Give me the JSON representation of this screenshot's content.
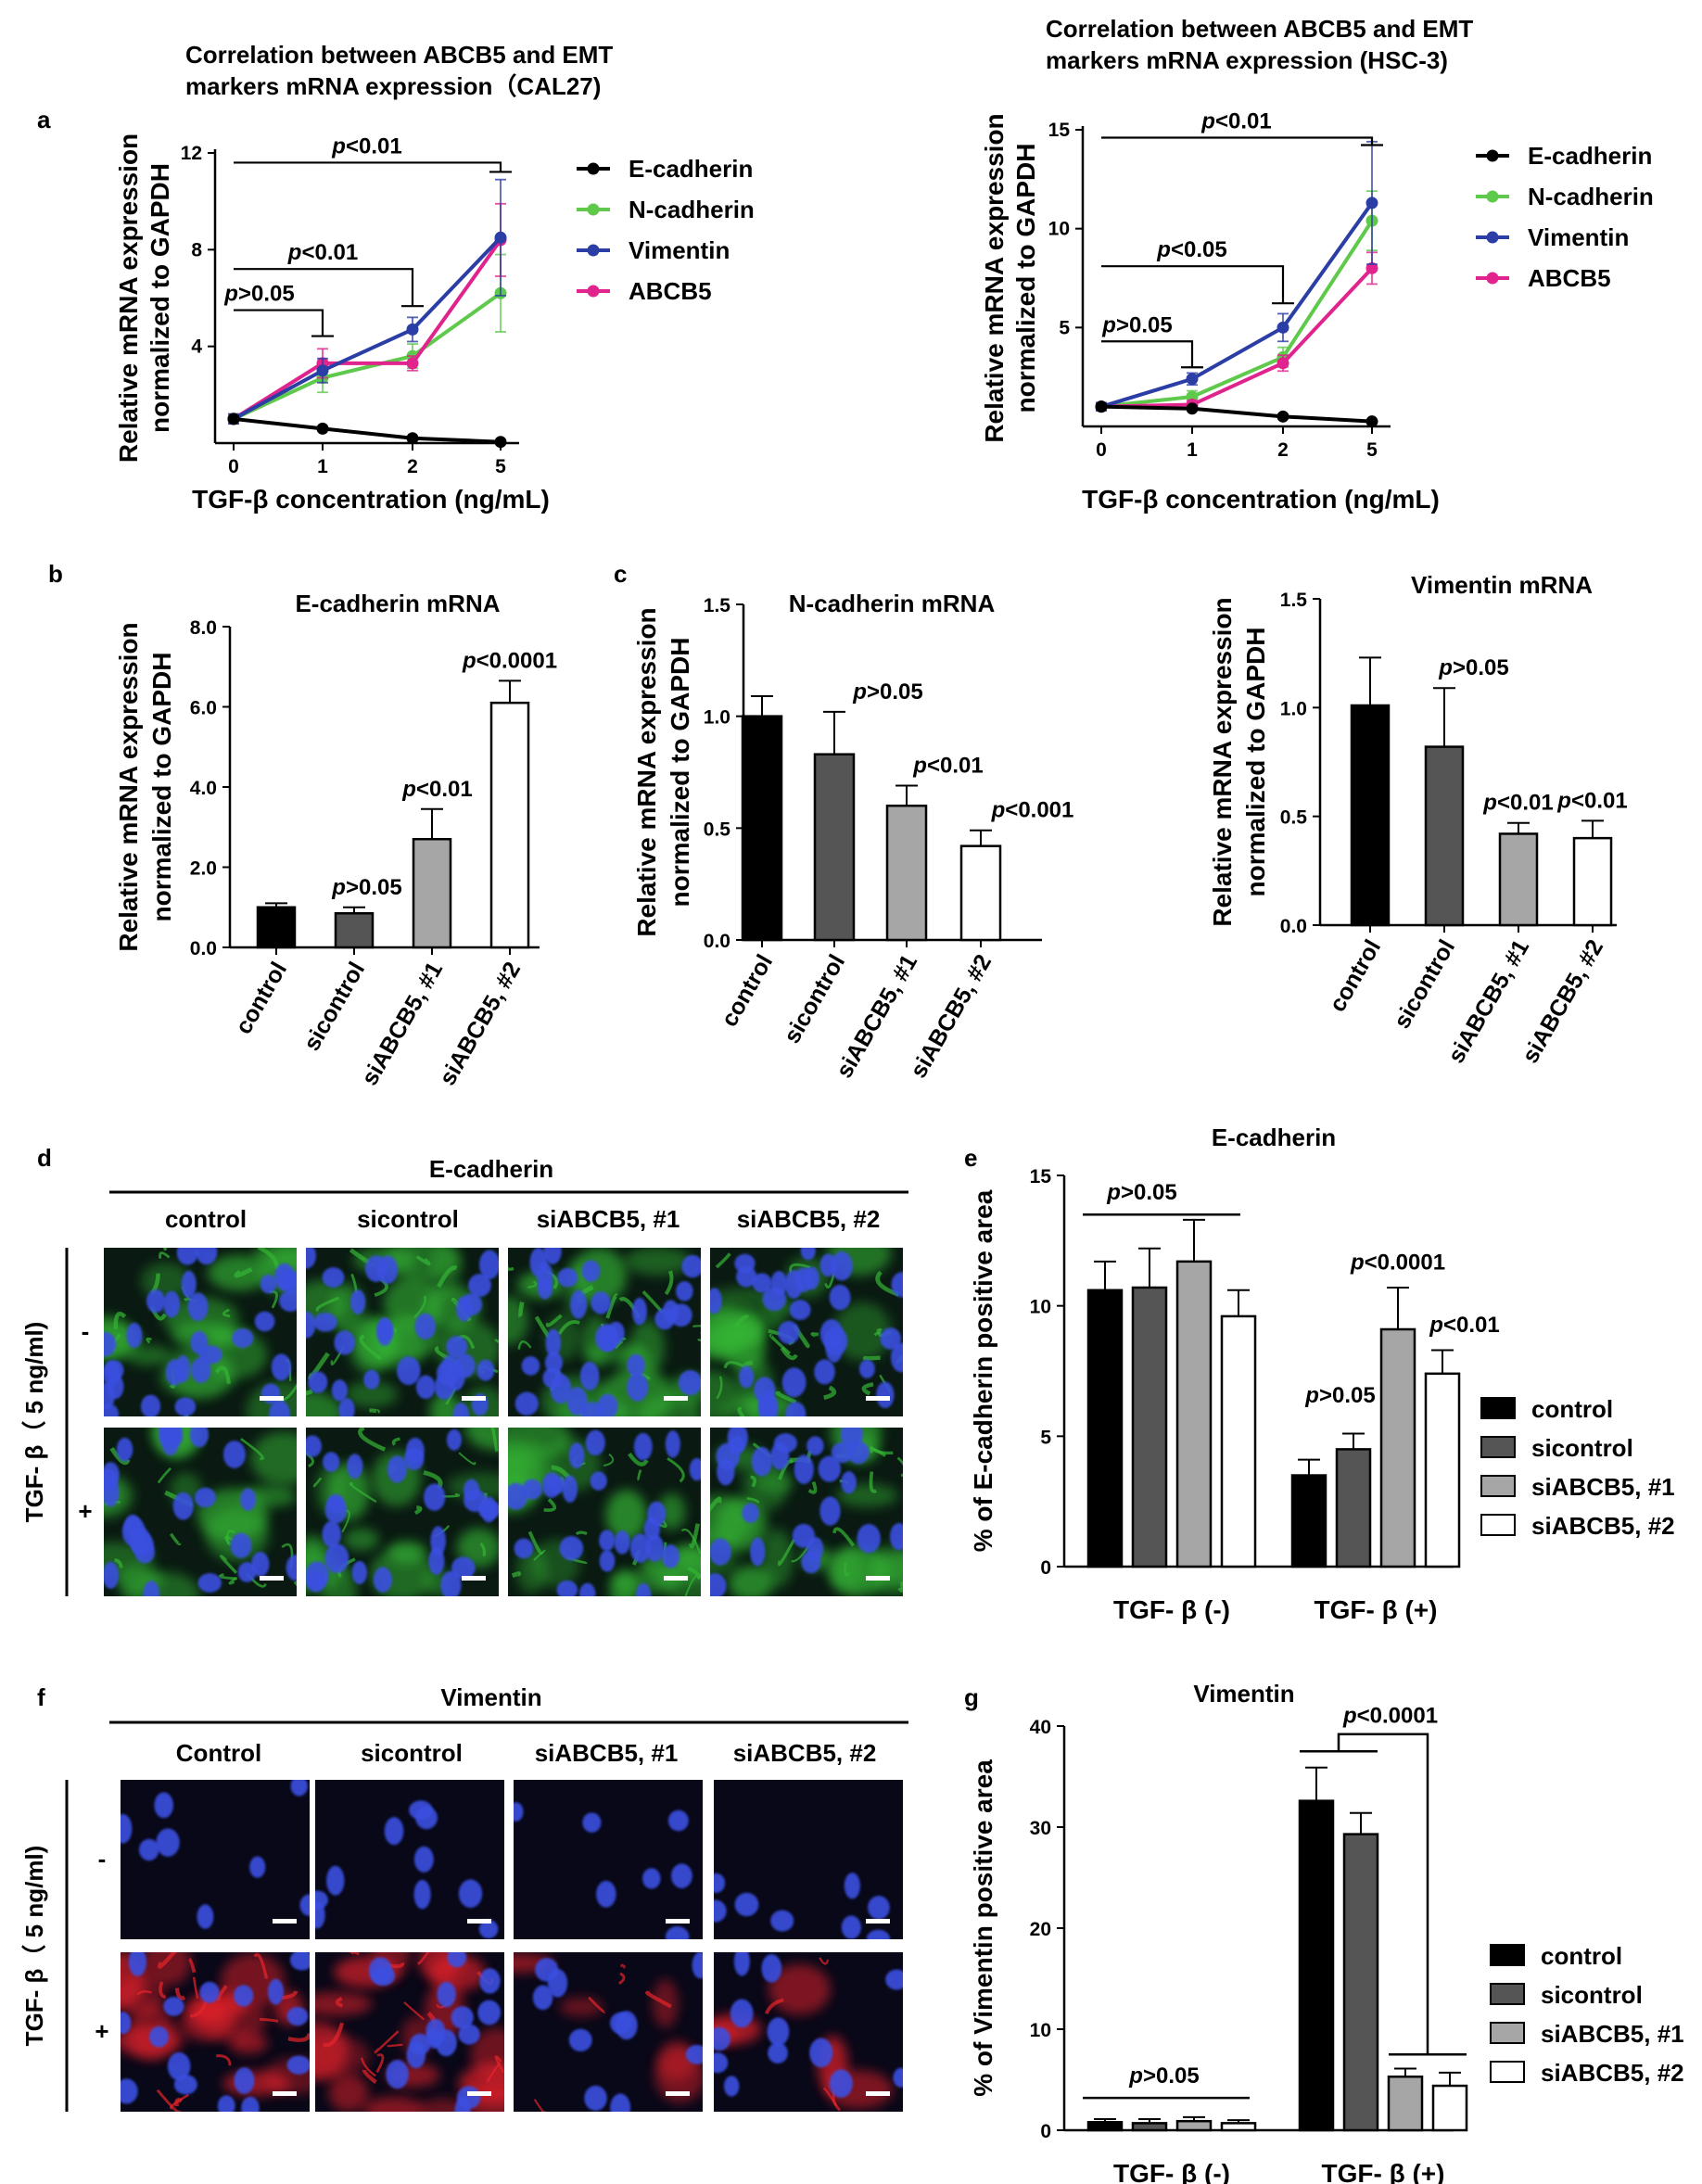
{
  "figure": {
    "panel_a": "a",
    "panel_b": "b",
    "panel_c": "c",
    "panel_d": "d",
    "panel_e": "e",
    "panel_f": "f",
    "panel_g": "g"
  },
  "chart_data": [
    {
      "id": "a1",
      "type": "line",
      "title_lines": [
        "Correlation between ABCB5 and EMT",
        "markers mRNA expression（CAL27)"
      ],
      "ylabel_lines": [
        "Relative mRNA expression",
        "normalized to GAPDH"
      ],
      "xlabel": "TGF-β concentration (ng/mL)",
      "categories": [
        "0",
        "1",
        "2",
        "5"
      ],
      "yticks": [
        4,
        8,
        12
      ],
      "ytick_labels": [
        "4",
        "8",
        "12"
      ],
      "ylim": [
        0,
        12
      ],
      "series": [
        {
          "name": "E-cadherin",
          "color": "#000000",
          "values": [
            1.0,
            0.6,
            0.2,
            0.05
          ],
          "errors": [
            0.1,
            0.05,
            0.05,
            0.03
          ]
        },
        {
          "name": "N-cadherin",
          "color": "#5ec94a",
          "values": [
            1.0,
            2.7,
            3.6,
            6.2
          ],
          "errors": [
            0.2,
            0.6,
            0.5,
            1.6
          ]
        },
        {
          "name": "Vimentin",
          "color": "#2b3ea5",
          "values": [
            1.0,
            3.0,
            4.7,
            8.5
          ],
          "errors": [
            0.2,
            0.5,
            0.5,
            2.4
          ]
        },
        {
          "name": "ABCB5",
          "color": "#e0238d",
          "values": [
            1.0,
            3.3,
            3.3,
            8.4
          ],
          "errors": [
            0.2,
            0.6,
            0.3,
            1.5
          ]
        }
      ],
      "annotations": [
        {
          "label": "p<0.01",
          "from": "0",
          "to": "5",
          "y": 11.6
        },
        {
          "label": "p<0.01",
          "from": "0",
          "to": "2",
          "y": 7.2
        },
        {
          "label": "p>0.05",
          "from": "0",
          "to": "1",
          "y": 5.5
        }
      ],
      "legend": "right"
    },
    {
      "id": "a2",
      "type": "line",
      "title_lines": [
        "Correlation between ABCB5 and EMT",
        "markers mRNA expression (HSC-3)"
      ],
      "ylabel_lines": [
        "Relative mRNA expression",
        "normalized to GAPDH"
      ],
      "xlabel": "TGF-β concentration (ng/mL)",
      "categories": [
        "0",
        "1",
        "2",
        "5"
      ],
      "yticks": [
        5,
        10,
        15
      ],
      "ytick_labels": [
        "5",
        "10",
        "15"
      ],
      "ylim": [
        0,
        15
      ],
      "series": [
        {
          "name": "E-cadherin",
          "color": "#000000",
          "values": [
            1.0,
            0.9,
            0.5,
            0.25
          ],
          "errors": [
            0.1,
            0.05,
            0.05,
            0.03
          ]
        },
        {
          "name": "N-cadherin",
          "color": "#5ec94a",
          "values": [
            1.0,
            1.5,
            3.5,
            10.4
          ],
          "errors": [
            0.2,
            0.3,
            0.5,
            1.5
          ]
        },
        {
          "name": "Vimentin",
          "color": "#2b3ea5",
          "values": [
            1.0,
            2.4,
            5.0,
            11.3
          ],
          "errors": [
            0.2,
            0.3,
            0.7,
            3.1
          ]
        },
        {
          "name": "ABCB5",
          "color": "#e0238d",
          "values": [
            1.0,
            1.1,
            3.2,
            8.0
          ],
          "errors": [
            0.2,
            0.2,
            0.4,
            0.8
          ]
        }
      ],
      "annotations": [
        {
          "label": "p<0.01",
          "from": "0",
          "to": "5",
          "y": 14.6
        },
        {
          "label": "p<0.05",
          "from": "0",
          "to": "2",
          "y": 8.1
        },
        {
          "label": "p>0.05",
          "from": "0",
          "to": "1",
          "y": 4.3
        }
      ],
      "legend": "right"
    },
    {
      "id": "b",
      "type": "bar",
      "title": "E-cadherin mRNA",
      "ylabel_lines": [
        "Relative mRNA expression",
        "normalized to GAPDH"
      ],
      "categories": [
        "control",
        "sicontrol",
        "siABCB5, #1",
        "siABCB5, #2"
      ],
      "values": [
        1.0,
        0.85,
        2.7,
        6.1
      ],
      "errors": [
        0.1,
        0.15,
        0.75,
        0.55
      ],
      "colors": [
        "#000000",
        "#555555",
        "#a6a6a6",
        "#ffffff"
      ],
      "yticks": [
        0,
        2,
        4,
        6,
        8
      ],
      "ytick_labels": [
        "0.0",
        "2.0",
        "4.0",
        "6.0",
        "8.0"
      ],
      "ylim": [
        0,
        8
      ],
      "bar_labels": [
        "",
        "p>0.05",
        "p<0.01",
        "p<0.0001"
      ]
    },
    {
      "id": "c1",
      "type": "bar",
      "title": "N-cadherin mRNA",
      "ylabel_lines": [
        "Relative mRNA expression",
        "normalized to GAPDH"
      ],
      "categories": [
        "control",
        "sicontrol",
        "siABCB5, #1",
        "siABCB5, #2"
      ],
      "values": [
        1.0,
        0.83,
        0.6,
        0.42
      ],
      "errors": [
        0.09,
        0.19,
        0.09,
        0.07
      ],
      "colors": [
        "#000000",
        "#555555",
        "#a6a6a6",
        "#ffffff"
      ],
      "yticks": [
        0,
        0.5,
        1.0,
        1.5
      ],
      "ytick_labels": [
        "0.0",
        "0.5",
        "1.0",
        "1.5"
      ],
      "ylim": [
        0,
        1.5
      ],
      "bar_labels": [
        "",
        "p>0.05",
        "p<0.01",
        "p<0.001"
      ]
    },
    {
      "id": "c2",
      "type": "bar",
      "title": "Vimentin mRNA",
      "ylabel_lines": [
        "Relative mRNA expression",
        "normalized to GAPDH"
      ],
      "categories": [
        "control",
        "sicontrol",
        "siABCB5, #1",
        "siABCB5, #2"
      ],
      "values": [
        1.01,
        0.82,
        0.42,
        0.4
      ],
      "errors": [
        0.22,
        0.27,
        0.05,
        0.08
      ],
      "colors": [
        "#000000",
        "#555555",
        "#a6a6a6",
        "#ffffff"
      ],
      "yticks": [
        0,
        0.5,
        1.0,
        1.5
      ],
      "ytick_labels": [
        "0.0",
        "0.5",
        "1.0",
        "1.5"
      ],
      "ylim": [
        0,
        1.5
      ],
      "bar_labels": [
        "",
        "p>0.05",
        "p<0.01",
        "p<0.01"
      ]
    },
    {
      "id": "e",
      "type": "bar",
      "title": "E-cadherin",
      "ylabel": "% of E-cadherin  positive area",
      "categories": [
        "TGF- β (-)",
        "TGF- β (+)"
      ],
      "series": [
        {
          "name": "control",
          "color": "#000000",
          "values": [
            10.6,
            3.5
          ],
          "errors": [
            1.1,
            0.6
          ]
        },
        {
          "name": "sicontrol",
          "color": "#555555",
          "values": [
            10.7,
            4.5
          ],
          "errors": [
            1.5,
            0.6
          ]
        },
        {
          "name": "siABCB5, #1",
          "color": "#a6a6a6",
          "values": [
            11.7,
            9.1
          ],
          "errors": [
            1.6,
            1.6
          ]
        },
        {
          "name": "siABCB5, #2",
          "color": "#ffffff",
          "values": [
            9.6,
            7.4
          ],
          "errors": [
            1.0,
            0.9
          ]
        }
      ],
      "yticks": [
        0,
        5,
        10,
        15
      ],
      "ytick_labels": [
        "0",
        "5",
        "10",
        "15"
      ],
      "ylim": [
        0,
        15
      ],
      "annotations": [
        {
          "label": "p>0.05"
        },
        {
          "label": "p>0.05"
        },
        {
          "label": "p<0.0001"
        },
        {
          "label": "p<0.01"
        }
      ],
      "legend": "right"
    },
    {
      "id": "g",
      "type": "bar",
      "title": "Vimentin",
      "ylabel": "% of Vimentin  positive area",
      "categories": [
        "TGF- β (-)",
        "TGF- β (+)"
      ],
      "series": [
        {
          "name": "control",
          "color": "#000000",
          "values": [
            0.8,
            32.6
          ],
          "errors": [
            0.3,
            3.3
          ]
        },
        {
          "name": "sicontrol",
          "color": "#555555",
          "values": [
            0.7,
            29.3
          ],
          "errors": [
            0.4,
            2.1
          ]
        },
        {
          "name": "siABCB5, #1",
          "color": "#a6a6a6",
          "values": [
            0.9,
            5.3
          ],
          "errors": [
            0.4,
            0.8
          ]
        },
        {
          "name": "siABCB5, #2",
          "color": "#ffffff",
          "values": [
            0.7,
            4.4
          ],
          "errors": [
            0.3,
            1.3
          ]
        }
      ],
      "yticks": [
        0,
        10,
        20,
        30,
        40
      ],
      "ytick_labels": [
        "0",
        "10",
        "20",
        "30",
        "40"
      ],
      "ylim": [
        0,
        40
      ],
      "annotations": [
        {
          "label": "p>0.05"
        },
        {
          "label": "p<0.0001"
        }
      ],
      "legend": "right"
    }
  ],
  "micrographs": {
    "d": {
      "header": "E-cadherin",
      "columns": [
        "control",
        "sicontrol",
        "siABCB5, #1",
        "siABCB5, #2"
      ],
      "row_axis_label": "TGF- β（ 5 ng/ml)",
      "rows": [
        "-",
        "+"
      ],
      "stain_color": "#35b535"
    },
    "f": {
      "header": "Vimentin",
      "columns": [
        "Control",
        "sicontrol",
        "siABCB5, #1",
        "siABCB5, #2"
      ],
      "row_axis_label": "TGF- β（ 5 ng/ml)",
      "rows": [
        "-",
        "+"
      ],
      "stain_color": "#e8232a"
    }
  }
}
